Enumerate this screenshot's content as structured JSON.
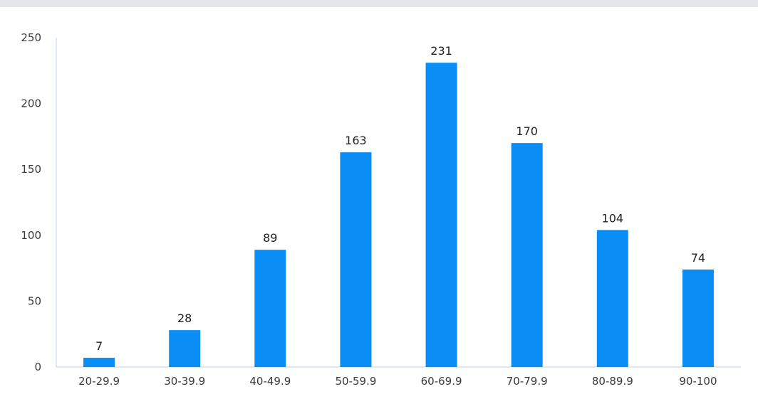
{
  "chart_data": {
    "type": "bar",
    "title": "",
    "xlabel": "",
    "ylabel": "",
    "categories": [
      "20-29.9",
      "30-39.9",
      "40-49.9",
      "50-59.9",
      "60-69.9",
      "70-79.9",
      "80-89.9",
      "90-100"
    ],
    "values": [
      7,
      28,
      89,
      163,
      231,
      170,
      104,
      74
    ],
    "data_labels": [
      "7",
      "28",
      "89",
      "163",
      "231",
      "170",
      "104",
      "74"
    ],
    "ylim": [
      0,
      250
    ],
    "yticks": [
      0,
      50,
      100,
      150,
      200,
      250
    ],
    "ytick_labels": [
      "0",
      "50",
      "100",
      "150",
      "200",
      "250"
    ],
    "grid": false,
    "legend": "none",
    "colors": {
      "bar": "#0a8ef5",
      "axis": "#b9d3ee",
      "top_strip": "#e4e6e9"
    }
  }
}
